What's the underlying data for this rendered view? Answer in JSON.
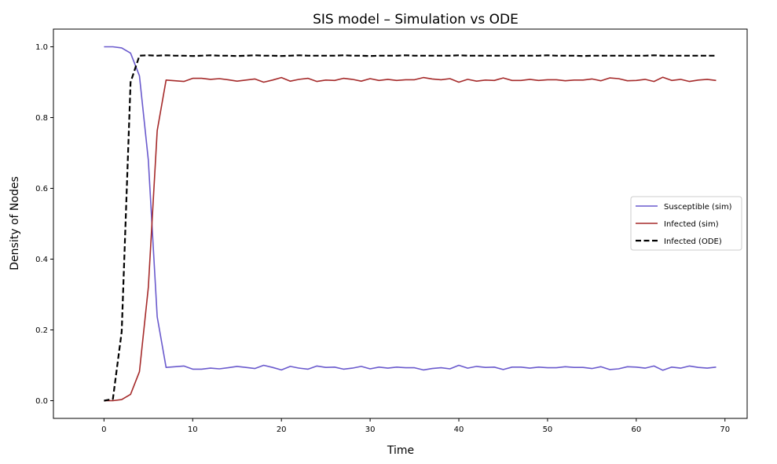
{
  "chart_data": {
    "type": "line",
    "title": "SIS model – Simulation vs ODE",
    "xlabel": "Time",
    "ylabel": "Density of Nodes",
    "xlim": [
      -5.7,
      72.5
    ],
    "ylim": [
      -0.05,
      1.05
    ],
    "xticks": [
      0,
      10,
      20,
      30,
      40,
      50,
      60,
      70
    ],
    "yticks": [
      0.0,
      0.2,
      0.4,
      0.6,
      0.8,
      1.0
    ],
    "ytick_labels": [
      "0.0",
      "0.2",
      "0.4",
      "0.6",
      "0.8",
      "1.0"
    ],
    "grid": false,
    "legend_position": "center-right",
    "series": [
      {
        "name": "Susceptible (sim)",
        "color": "#6a5acd",
        "style": "solid",
        "x": [
          0,
          1,
          2,
          3,
          4,
          5,
          6,
          7,
          8,
          9,
          10,
          11,
          12,
          13,
          14,
          15,
          16,
          17,
          18,
          19,
          20,
          21,
          22,
          23,
          24,
          25,
          26,
          27,
          28,
          29,
          30,
          31,
          32,
          33,
          34,
          35,
          36,
          37,
          38,
          39,
          40,
          41,
          42,
          43,
          44,
          45,
          46,
          47,
          48,
          49,
          50,
          51,
          52,
          53,
          54,
          55,
          56,
          57,
          58,
          59,
          60,
          61,
          62,
          63,
          64,
          65,
          66,
          67,
          68,
          69
        ],
        "y": [
          1.0,
          1.0,
          0.997,
          0.982,
          0.918,
          0.68,
          0.237,
          0.094,
          0.096,
          0.098,
          0.089,
          0.089,
          0.092,
          0.09,
          0.093,
          0.097,
          0.094,
          0.091,
          0.1,
          0.094,
          0.087,
          0.097,
          0.092,
          0.089,
          0.098,
          0.094,
          0.095,
          0.089,
          0.092,
          0.097,
          0.09,
          0.095,
          0.092,
          0.095,
          0.093,
          0.093,
          0.087,
          0.091,
          0.093,
          0.09,
          0.1,
          0.092,
          0.097,
          0.094,
          0.095,
          0.088,
          0.095,
          0.095,
          0.092,
          0.095,
          0.093,
          0.093,
          0.096,
          0.094,
          0.094,
          0.091,
          0.096,
          0.088,
          0.09,
          0.096,
          0.095,
          0.092,
          0.098,
          0.086,
          0.095,
          0.092,
          0.098,
          0.094,
          0.092,
          0.095
        ]
      },
      {
        "name": "Infected (sim)",
        "color": "#a52a2a",
        "style": "solid",
        "x": [
          0,
          1,
          2,
          3,
          4,
          5,
          6,
          7,
          8,
          9,
          10,
          11,
          12,
          13,
          14,
          15,
          16,
          17,
          18,
          19,
          20,
          21,
          22,
          23,
          24,
          25,
          26,
          27,
          28,
          29,
          30,
          31,
          32,
          33,
          34,
          35,
          36,
          37,
          38,
          39,
          40,
          41,
          42,
          43,
          44,
          45,
          46,
          47,
          48,
          49,
          50,
          51,
          52,
          53,
          54,
          55,
          56,
          57,
          58,
          59,
          60,
          61,
          62,
          63,
          64,
          65,
          66,
          67,
          68,
          69
        ],
        "y": [
          0.0,
          0.0,
          0.003,
          0.018,
          0.082,
          0.32,
          0.763,
          0.906,
          0.904,
          0.902,
          0.911,
          0.911,
          0.908,
          0.91,
          0.907,
          0.903,
          0.906,
          0.909,
          0.9,
          0.906,
          0.913,
          0.903,
          0.908,
          0.911,
          0.902,
          0.906,
          0.905,
          0.911,
          0.908,
          0.903,
          0.91,
          0.905,
          0.908,
          0.905,
          0.907,
          0.907,
          0.913,
          0.909,
          0.907,
          0.91,
          0.9,
          0.908,
          0.903,
          0.906,
          0.905,
          0.912,
          0.905,
          0.905,
          0.908,
          0.905,
          0.907,
          0.907,
          0.904,
          0.906,
          0.906,
          0.909,
          0.904,
          0.912,
          0.91,
          0.904,
          0.905,
          0.908,
          0.902,
          0.914,
          0.905,
          0.908,
          0.902,
          0.906,
          0.908,
          0.905
        ]
      },
      {
        "name": "Infected (ODE)",
        "color": "#000000",
        "style": "dashed",
        "x": [
          0,
          1,
          2,
          3,
          4,
          5,
          6,
          7,
          8,
          9,
          10,
          11,
          12,
          13,
          14,
          15,
          16,
          17,
          18,
          19,
          20,
          21,
          22,
          23,
          24,
          25,
          26,
          27,
          28,
          29,
          30,
          31,
          32,
          33,
          34,
          35,
          36,
          37,
          38,
          39,
          40,
          41,
          42,
          43,
          44,
          45,
          46,
          47,
          48,
          49,
          50,
          51,
          52,
          53,
          54,
          55,
          56,
          57,
          58,
          59,
          60,
          61,
          62,
          63,
          64,
          65,
          66,
          67,
          68,
          69
        ],
        "y": [
          0.0,
          0.005,
          0.195,
          0.9,
          0.975,
          0.976,
          0.975,
          0.976,
          0.975,
          0.975,
          0.974,
          0.975,
          0.976,
          0.975,
          0.975,
          0.974,
          0.975,
          0.976,
          0.975,
          0.975,
          0.974,
          0.975,
          0.976,
          0.975,
          0.975,
          0.975,
          0.975,
          0.976,
          0.975,
          0.975,
          0.974,
          0.975,
          0.975,
          0.975,
          0.976,
          0.975,
          0.975,
          0.975,
          0.975,
          0.975,
          0.976,
          0.975,
          0.975,
          0.975,
          0.975,
          0.975,
          0.975,
          0.975,
          0.975,
          0.975,
          0.976,
          0.975,
          0.975,
          0.975,
          0.974,
          0.975,
          0.975,
          0.975,
          0.975,
          0.975,
          0.975,
          0.975,
          0.976,
          0.975,
          0.975,
          0.975,
          0.975,
          0.975,
          0.975,
          0.975
        ]
      }
    ]
  }
}
